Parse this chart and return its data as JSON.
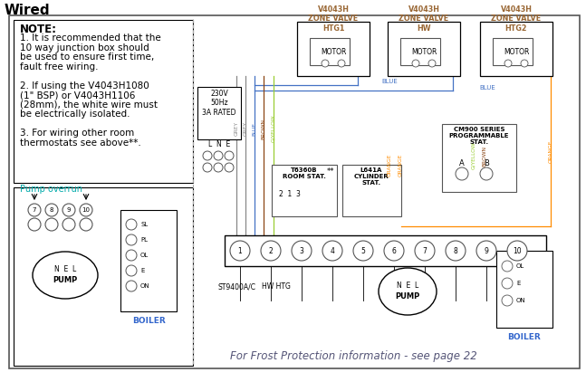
{
  "title": "Wired",
  "bg_color": "#ffffff",
  "border_color": "#000000",
  "note_text": "NOTE:",
  "note_lines": [
    "1. It is recommended that the",
    "10 way junction box should",
    "be used to ensure first time,",
    "fault free wiring.",
    "",
    "2. If using the V4043H1080",
    "(1\" BSP) or V4043H1106",
    "(28mm), the white wire must",
    "be electrically isolated.",
    "",
    "3. For wiring other room",
    "thermostats see above**."
  ],
  "pump_overrun_label": "Pump overrun",
  "frost_text": "For Frost Protection information - see page 22",
  "zone_valve_labels": [
    "V4043H\nZONE VALVE\nHTG1",
    "V4043H\nZONE VALVE\nHW",
    "V4043H\nZONE VALVE\nHTG2"
  ],
  "wire_colors": {
    "grey": "#888888",
    "blue": "#4472c4",
    "brown": "#8B4513",
    "orange": "#FF8C00",
    "gyellow": "#9acd32",
    "black": "#000000"
  },
  "label_230v": "230V\n50Hz\n3A RATED",
  "lne_label": "L  N  E",
  "boiler_label": "BOILER",
  "pump_label": "PUMP",
  "st9400_label": "ST9400A/C",
  "hw_htg_label": "HW HTG",
  "cm900_label": "CM900 SERIES\nPROGRAMMABLE\nSTAT.",
  "t6360b_label": "T6360B\nROOM STAT.",
  "l641a_label": "L641A\nCYLINDER\nSTAT.",
  "motor_label": "MOTOR",
  "font_size_title": 11,
  "font_size_note": 7.5,
  "font_size_label": 6,
  "font_size_small": 5.5,
  "boiler_labels_small": [
    "SL",
    "PL",
    "OL",
    "E",
    "ON"
  ],
  "boiler_labels_right": [
    "OL",
    "E",
    "ON"
  ]
}
